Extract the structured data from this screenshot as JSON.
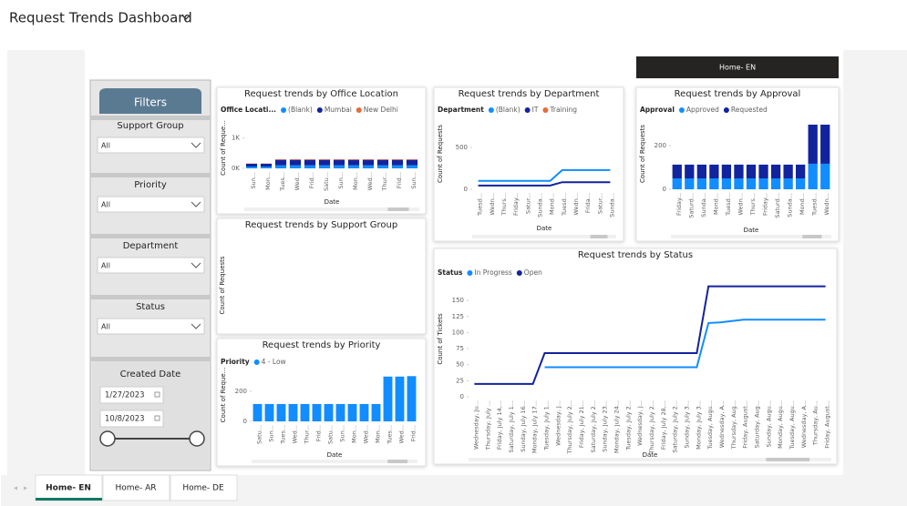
{
  "header": {
    "title": "Request Trends Dashboard"
  },
  "nav_button": "Home- EN",
  "tabs": [
    "Home- EN",
    "Home- AR",
    "Home- DE"
  ],
  "filters": {
    "title": "Filters",
    "slicers": [
      {
        "label": "Support Group",
        "value": "All"
      },
      {
        "label": "Priority",
        "value": "All"
      },
      {
        "label": "Department",
        "value": "All"
      },
      {
        "label": "Status",
        "value": "All"
      }
    ],
    "date": {
      "label": "Created Date",
      "start": "1/27/2023",
      "end": "10/8/2023"
    }
  },
  "charts": [
    {
      "type": "stacked-bar",
      "title": "Request trends by Office Location",
      "legend_title": "Office Locati...",
      "ylabel": "Count of Reque...",
      "xlabel": "Date",
      "categories": [
        "Sun...",
        "Mon...",
        "Tues...",
        "Wed...",
        "Frid...",
        "Satu...",
        "Sun...",
        "Mon...",
        "Wed...",
        "Thur...",
        "Frid...",
        "Sun..."
      ],
      "series": [
        {
          "name": "(Blank)",
          "color": "#118DFF",
          "values": [
            60,
            60,
            100,
            100,
            100,
            100,
            100,
            100,
            100,
            100,
            100,
            100
          ]
        },
        {
          "name": "Mumbai",
          "color": "#12239E",
          "values": [
            90,
            90,
            180,
            180,
            180,
            180,
            180,
            180,
            180,
            180,
            180,
            180
          ]
        },
        {
          "name": "New Delhi",
          "color": "#E66C37",
          "values": [
            10,
            10,
            20,
            20,
            20,
            20,
            20,
            20,
            20,
            20,
            20,
            20
          ]
        }
      ],
      "ylim": [
        0,
        1350
      ],
      "yticks": [
        {
          "value": 0,
          "label": "0K"
        },
        {
          "value": 1000,
          "label": "1K"
        }
      ]
    },
    {
      "type": "line",
      "title": "Request trends by Department",
      "legend_title": "Department",
      "ylabel": "Count of Requests",
      "xlabel": "Date",
      "categories": [
        "Tuesd...",
        "Wedn...",
        "Thurs...",
        "Friday...",
        "Satur...",
        "Sunda...",
        "Mond...",
        "Tuesd...",
        "Wedn...",
        "Frida...",
        "Satur...",
        "Sunda..."
      ],
      "series": [
        {
          "name": "(Blank)",
          "color": "#118DFF",
          "values": [
            100,
            100,
            100,
            100,
            100,
            100,
            100,
            230,
            230,
            230,
            230,
            230
          ]
        },
        {
          "name": "IT",
          "color": "#12239E",
          "values": [
            45,
            45,
            45,
            45,
            45,
            45,
            45,
            85,
            85,
            85,
            85,
            85
          ]
        },
        {
          "name": "Training",
          "color": "#E66C37",
          "values": [
            null,
            null,
            null,
            null,
            null,
            null,
            null,
            null,
            null,
            null,
            null,
            null
          ]
        }
      ],
      "ylim": [
        0,
        850
      ],
      "yticks": [
        0,
        500
      ]
    },
    {
      "type": "stacked-bar",
      "title": "Request trends by Approval",
      "legend_title": "Approval",
      "ylabel": "Count of Requests",
      "xlabel": "Date",
      "categories": [
        "Friday...",
        "Saturd...",
        "Sunda...",
        "Mond...",
        "Tuesd...",
        "Wedn...",
        "Thurs...",
        "Friday...",
        "Saturd...",
        "Sunda...",
        "Mond...",
        "Tuesd...",
        "Wedn..."
      ],
      "series": [
        {
          "name": "Approved",
          "color": "#118DFF",
          "values": [
            50,
            50,
            50,
            50,
            50,
            50,
            50,
            50,
            50,
            50,
            50,
            117,
            117
          ]
        },
        {
          "name": "Requested",
          "color": "#12239E",
          "values": [
            63,
            63,
            63,
            63,
            63,
            63,
            63,
            63,
            63,
            63,
            63,
            179,
            179
          ]
        }
      ],
      "ylim": [
        0,
        325
      ],
      "yticks": [
        0,
        200
      ]
    },
    {
      "type": "blank",
      "title": "Request trends by Support Group",
      "ylabel": "Count of Requests"
    },
    {
      "type": "stacked-bar",
      "title": "Request trends by Priority",
      "legend_title": "Priority",
      "ylabel": "Count of Reque...",
      "xlabel": "Date",
      "categories": [
        "Satu...",
        "Sun...",
        "Tues...",
        "Wed...",
        "Thur...",
        "Frid...",
        "Satu...",
        "Sun...",
        "Mon...",
        "Wed...",
        "Mon...",
        "Tues...",
        "Wed...",
        "Frid..."
      ],
      "series": [
        {
          "name": "4 - Low",
          "color": "#118DFF",
          "values": [
            115,
            115,
            115,
            115,
            115,
            115,
            115,
            115,
            115,
            115,
            115,
            297,
            297,
            300
          ]
        }
      ],
      "ylim": [
        0,
        350
      ],
      "yticks": [
        0,
        200
      ]
    },
    {
      "type": "line",
      "title": "Request trends by Status",
      "legend_title": "Status",
      "ylabel": "Count of Tickets",
      "xlabel": "Date",
      "categories": [
        "Wednesday, Ju...",
        "Thursday, July ...",
        "Friday, July 14,...",
        "Saturday, July 1...",
        "Sunday, July 16...",
        "Monday, July 17...",
        "Tuesday, July 1...",
        "Wednesday, J...",
        "Thursday, July 2...",
        "Friday, July 21...",
        "Saturday, July 2...",
        "Sunday, July 23...",
        "Monday, July 24...",
        "Tuesday, July 2...",
        "Wednesday, J...",
        "Thursday, July 2...",
        "Friday, July 28,...",
        "Saturday, July 2...",
        "Sunday, July 3...",
        "Monday, July 3...",
        "Tuesday, Augu...",
        "Wednesday, A...",
        "Thursday, Aug...",
        "Friday, August...",
        "Saturday, Aug...",
        "Sunday, Augu...",
        "Monday, Augu...",
        "Tuesday, Augu...",
        "Wednesday, A...",
        "Thursday, Au...",
        "Friday, August..."
      ],
      "series": [
        {
          "name": "In Progress",
          "color": "#118DFF",
          "values": [
            null,
            null,
            null,
            null,
            null,
            null,
            46,
            46,
            46,
            46,
            46,
            46,
            46,
            46,
            46,
            46,
            46,
            46,
            46,
            46,
            115,
            116,
            118,
            120,
            120,
            120,
            120,
            120,
            120,
            120,
            120
          ]
        },
        {
          "name": "Open",
          "color": "#12239E",
          "values": [
            20,
            20,
            20,
            20,
            20,
            20,
            68,
            68,
            68,
            68,
            68,
            68,
            68,
            68,
            68,
            68,
            68,
            68,
            68,
            68,
            172,
            172,
            172,
            172,
            172,
            172,
            172,
            172,
            172,
            172,
            172
          ]
        }
      ],
      "ylim": [
        0,
        180
      ],
      "yticks": [
        0,
        25,
        50,
        75,
        100,
        125,
        150
      ]
    }
  ]
}
